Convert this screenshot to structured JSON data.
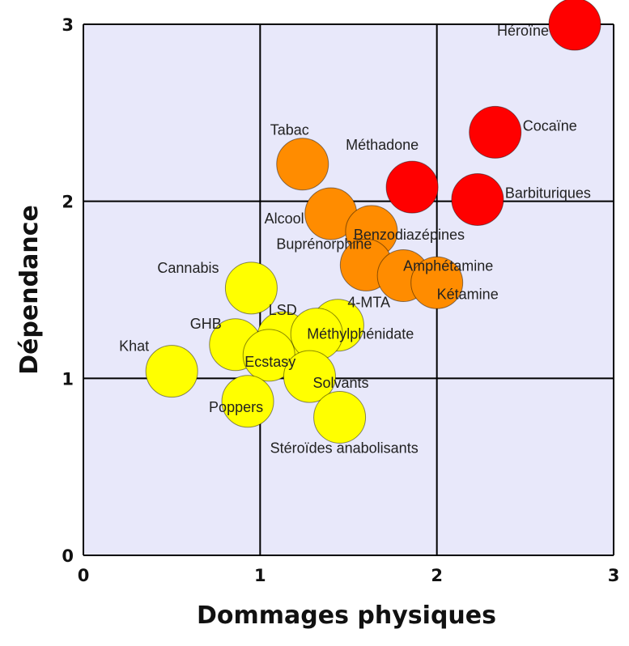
{
  "chart_data": {
    "type": "scatter",
    "xlabel": "Dommages physiques",
    "ylabel": "Dépendance",
    "xlim": [
      0,
      3
    ],
    "ylim": [
      0,
      3
    ],
    "xticks": [
      "0",
      "1",
      "2",
      "3"
    ],
    "yticks": [
      "0",
      "1",
      "2",
      "3"
    ],
    "grid": true,
    "background": "#e8e8fa",
    "colors": {
      "red": "#ff0000",
      "orange": "#ff8c00",
      "yellow": "#ffff00"
    },
    "points": [
      {
        "label": "Héroïne",
        "x": 2.78,
        "y": 3.0,
        "color": "red"
      },
      {
        "label": "Cocaïne",
        "x": 2.33,
        "y": 2.39,
        "color": "red"
      },
      {
        "label": "Méthadone",
        "x": 1.86,
        "y": 2.08,
        "color": "red"
      },
      {
        "label": "Barbituriques",
        "x": 2.23,
        "y": 2.01,
        "color": "red"
      },
      {
        "label": "Tabac",
        "x": 1.24,
        "y": 2.21,
        "color": "orange"
      },
      {
        "label": "Alcool",
        "x": 1.4,
        "y": 1.93,
        "color": "orange"
      },
      {
        "label": "Benzodiazépines",
        "x": 1.63,
        "y": 1.83,
        "color": "orange"
      },
      {
        "label": "Buprénorphine",
        "x": 1.6,
        "y": 1.64,
        "color": "orange"
      },
      {
        "label": "Amphétamine",
        "x": 1.81,
        "y": 1.58,
        "color": "orange"
      },
      {
        "label": "Kétamine",
        "x": 2.0,
        "y": 1.54,
        "color": "orange"
      },
      {
        "label": "Cannabis",
        "x": 0.95,
        "y": 1.51,
        "color": "yellow"
      },
      {
        "label": "LSD",
        "x": 1.13,
        "y": 1.23,
        "color": "yellow"
      },
      {
        "label": "4-MTA",
        "x": 1.44,
        "y": 1.3,
        "color": "yellow"
      },
      {
        "label": "Méthylphénidate",
        "x": 1.32,
        "y": 1.25,
        "color": "yellow"
      },
      {
        "label": "GHB",
        "x": 0.86,
        "y": 1.19,
        "color": "yellow"
      },
      {
        "label": "Ecstasy",
        "x": 1.05,
        "y": 1.13,
        "color": "yellow"
      },
      {
        "label": "Khat",
        "x": 0.5,
        "y": 1.04,
        "color": "yellow"
      },
      {
        "label": "Solvants",
        "x": 1.28,
        "y": 1.01,
        "color": "yellow"
      },
      {
        "label": "Poppers",
        "x": 0.93,
        "y": 0.87,
        "color": "yellow"
      },
      {
        "label": "Stéroïdes anabolisants",
        "x": 1.45,
        "y": 0.78,
        "color": "yellow"
      }
    ]
  }
}
